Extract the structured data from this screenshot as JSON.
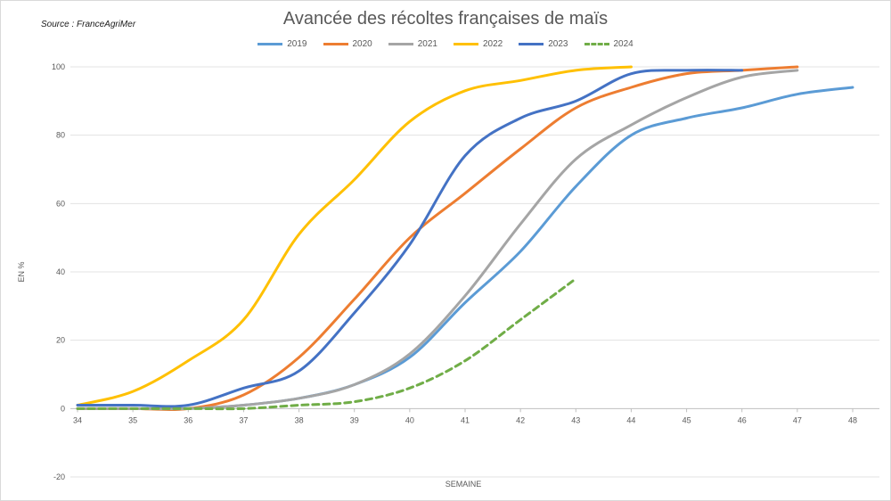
{
  "source_note": "Source : FranceAgriMer",
  "chart_data": {
    "type": "line",
    "title": "Avancée des récoltes françaises de maïs",
    "xlabel": "SEMAINE",
    "ylabel": "EN %",
    "xlim": [
      34,
      48
    ],
    "ylim": [
      -20,
      100
    ],
    "x_ticks": [
      34,
      35,
      36,
      37,
      38,
      39,
      40,
      41,
      42,
      43,
      44,
      45,
      46,
      47,
      48
    ],
    "y_ticks": [
      -20,
      0,
      20,
      40,
      60,
      80,
      100
    ],
    "grid": true,
    "legend_position": "top-center",
    "series": [
      {
        "name": "2019",
        "color": "#5b9bd5",
        "dashed": false,
        "x": [
          34,
          35,
          36,
          37,
          38,
          39,
          40,
          41,
          42,
          43,
          44,
          45,
          46,
          47,
          48
        ],
        "y": [
          0,
          0,
          0,
          1,
          3,
          7,
          15,
          31,
          46,
          65,
          80,
          85,
          88,
          92,
          94
        ]
      },
      {
        "name": "2020",
        "color": "#ed7d31",
        "dashed": false,
        "x": [
          34,
          35,
          36,
          37,
          38,
          39,
          40,
          41,
          42,
          43,
          44,
          45,
          46,
          47
        ],
        "y": [
          0,
          0,
          0,
          4,
          15,
          32,
          50,
          63,
          76,
          88,
          94,
          98,
          99,
          100
        ]
      },
      {
        "name": "2021",
        "color": "#a5a5a5",
        "dashed": false,
        "x": [
          34,
          35,
          36,
          37,
          38,
          39,
          40,
          41,
          42,
          43,
          44,
          45,
          46,
          47
        ],
        "y": [
          0,
          0,
          0,
          1,
          3,
          7,
          16,
          33,
          54,
          73,
          83,
          91,
          97,
          99
        ]
      },
      {
        "name": "2022",
        "color": "#ffc000",
        "dashed": false,
        "x": [
          34,
          35,
          36,
          37,
          38,
          39,
          40,
          41,
          42,
          43,
          44
        ],
        "y": [
          1,
          5,
          14,
          26,
          51,
          67,
          84,
          93,
          96,
          99,
          100
        ]
      },
      {
        "name": "2023",
        "color": "#4472c4",
        "dashed": false,
        "x": [
          34,
          35,
          36,
          37,
          38,
          39,
          40,
          41,
          42,
          43,
          44,
          45,
          46
        ],
        "y": [
          1,
          1,
          1,
          6,
          11,
          28,
          48,
          74,
          85,
          90,
          98,
          99,
          99
        ]
      },
      {
        "name": "2024",
        "color": "#70ad47",
        "dashed": true,
        "x": [
          34,
          35,
          36,
          37,
          38,
          39,
          40,
          41,
          42,
          43
        ],
        "y": [
          0,
          0,
          0,
          0,
          1,
          2,
          6,
          14,
          26,
          38
        ]
      }
    ]
  }
}
